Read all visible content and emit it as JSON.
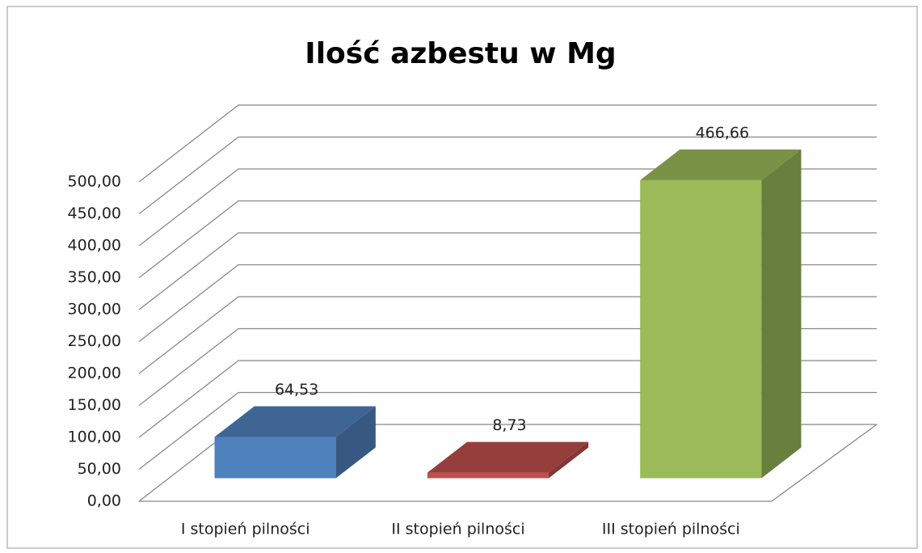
{
  "chart_data": {
    "type": "bar3d",
    "title": "Ilość azbestu w Mg",
    "categories": [
      "I stopień pilności",
      "II stopień pilności",
      "III stopień pilności"
    ],
    "values": [
      64.53,
      8.73,
      466.66
    ],
    "value_labels": [
      "64,53",
      "8,73",
      "466,66"
    ],
    "colors": [
      "#4f81bd",
      "#c0504d",
      "#9bbb59"
    ],
    "ylim": [
      0,
      500
    ],
    "yticks": [
      {
        "value": 0,
        "label": "0,00"
      },
      {
        "value": 50,
        "label": "50,00"
      },
      {
        "value": 100,
        "label": "100,00"
      },
      {
        "value": 150,
        "label": "150,00"
      },
      {
        "value": 200,
        "label": "200,00"
      },
      {
        "value": 250,
        "label": "250,00"
      },
      {
        "value": 300,
        "label": "300,00"
      },
      {
        "value": 350,
        "label": "350,00"
      },
      {
        "value": 400,
        "label": "400,00"
      },
      {
        "value": 450,
        "label": "450,00"
      },
      {
        "value": 500,
        "label": "500,00"
      }
    ],
    "grid": true
  }
}
